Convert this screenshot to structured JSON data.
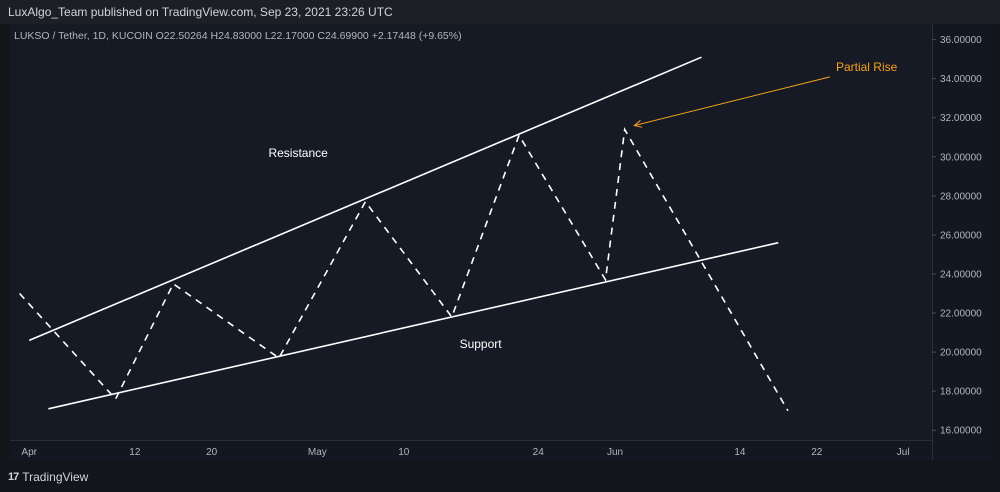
{
  "header": {
    "publisher": "LuxAlgo_Team published on TradingView.com, Sep 23, 2021 23:26 UTC"
  },
  "symbol_info": {
    "text": "LUKSO / Tether, 1D, KUCOIN",
    "open": "O22.50264",
    "high": "H24.83000",
    "low": "L22.17000",
    "close": "C24.69900",
    "change": "+2.17448 (+9.65%)"
  },
  "footer": {
    "brand": "TradingView",
    "logo_mark": "17"
  },
  "colors": {
    "background": "#161a25",
    "lines": "#ffffff",
    "annotation": "#f7a21b",
    "text": "#b2b5be"
  },
  "chart_data": {
    "type": "line",
    "title": "LUKSO / Tether, 1D, KUCOIN",
    "y_axis": {
      "ticks": [
        "36.00000",
        "34.00000",
        "32.00000",
        "30.00000",
        "28.00000",
        "26.00000",
        "24.00000",
        "22.00000",
        "20.00000",
        "18.00000",
        "16.00000"
      ],
      "ylim": [
        15.5,
        36.8
      ]
    },
    "x_axis": {
      "ticks": [
        "Apr",
        "12",
        "20",
        "May",
        "10",
        "24",
        "Jun",
        "14",
        "22",
        "Jul"
      ],
      "tick_dates": [
        "2021-04-01",
        "2021-04-12",
        "2021-04-20",
        "2021-05-01",
        "2021-05-10",
        "2021-05-24",
        "2021-06-01",
        "2021-06-14",
        "2021-06-22",
        "2021-07-01"
      ],
      "xlim": [
        "2021-03-30",
        "2021-07-04"
      ]
    },
    "series": [
      {
        "style": "dashed",
        "points": [
          {
            "x": "2021-03-31",
            "y": 23.0
          },
          {
            "x": "2021-04-10",
            "y": 17.6
          },
          {
            "x": "2021-04-16",
            "y": 23.5
          },
          {
            "x": "2021-04-27",
            "y": 19.7
          },
          {
            "x": "2021-05-06",
            "y": 27.7
          },
          {
            "x": "2021-05-15",
            "y": 21.8
          },
          {
            "x": "2021-05-22",
            "y": 31.1
          },
          {
            "x": "2021-05-31",
            "y": 23.7
          },
          {
            "x": "2021-06-02",
            "y": 31.4
          },
          {
            "x": "2021-06-19",
            "y": 17.0
          }
        ]
      },
      {
        "name": "Resistance",
        "style": "solid",
        "points": [
          {
            "x": "2021-04-01",
            "y": 20.6
          },
          {
            "x": "2021-06-10",
            "y": 35.1
          }
        ]
      },
      {
        "name": "Support",
        "style": "solid",
        "points": [
          {
            "x": "2021-04-03",
            "y": 17.1
          },
          {
            "x": "2021-06-18",
            "y": 25.6
          }
        ]
      }
    ],
    "annotations": [
      {
        "text": "Resistance",
        "x": "2021-04-29",
        "y": 30.0,
        "color": "#ffffff"
      },
      {
        "text": "Support",
        "x": "2021-05-18",
        "y": 20.2,
        "color": "#ffffff"
      },
      {
        "text": "Partial Rise",
        "x": "2021-06-24",
        "y": 34.4,
        "color": "#f7a21b",
        "arrow_to": {
          "x": "2021-06-03",
          "y": 31.6
        }
      }
    ],
    "grid": false
  }
}
